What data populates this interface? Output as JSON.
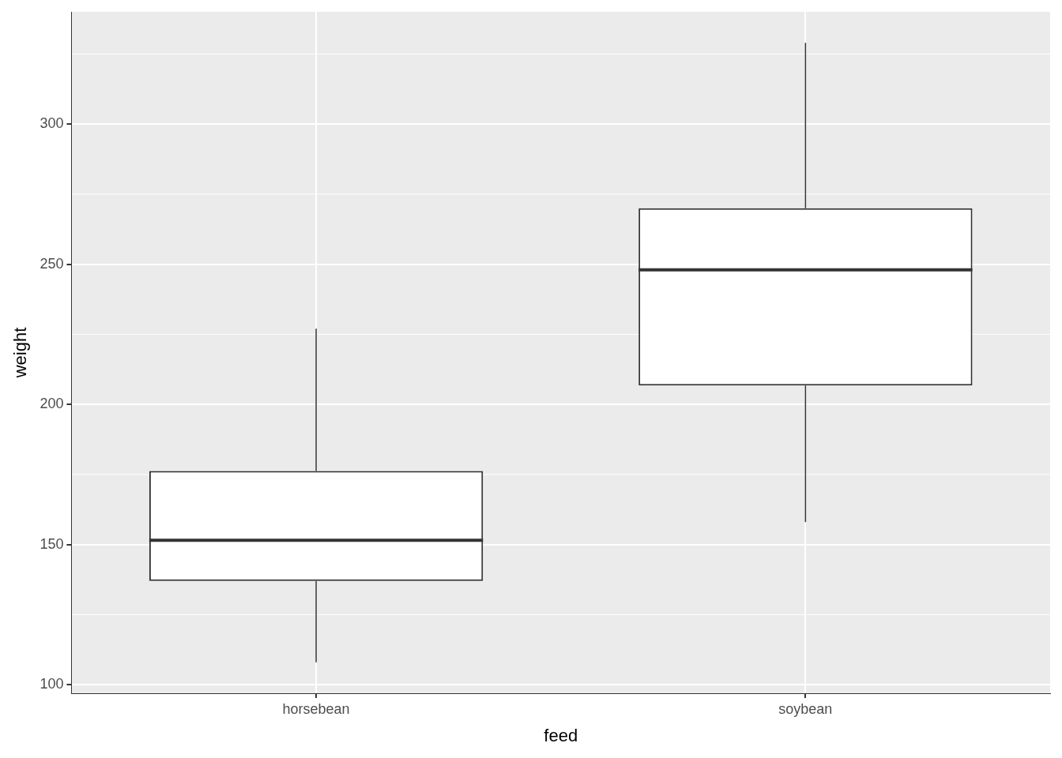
{
  "chart_data": {
    "type": "boxplot",
    "x_label": "feed",
    "y_label": "weight",
    "categories": [
      "horsebean",
      "soybean"
    ],
    "boxes": [
      {
        "min": 108,
        "q1": 137,
        "median": 151.5,
        "q3": 176.25,
        "max": 227
      },
      {
        "min": 158,
        "q1": 206.75,
        "median": 248,
        "q3": 270,
        "max": 329
      }
    ],
    "color": "#333333",
    "ylim": [
      96.95,
      340.05
    ],
    "yticks": [
      100,
      150,
      200,
      250,
      300
    ],
    "grid": true
  }
}
